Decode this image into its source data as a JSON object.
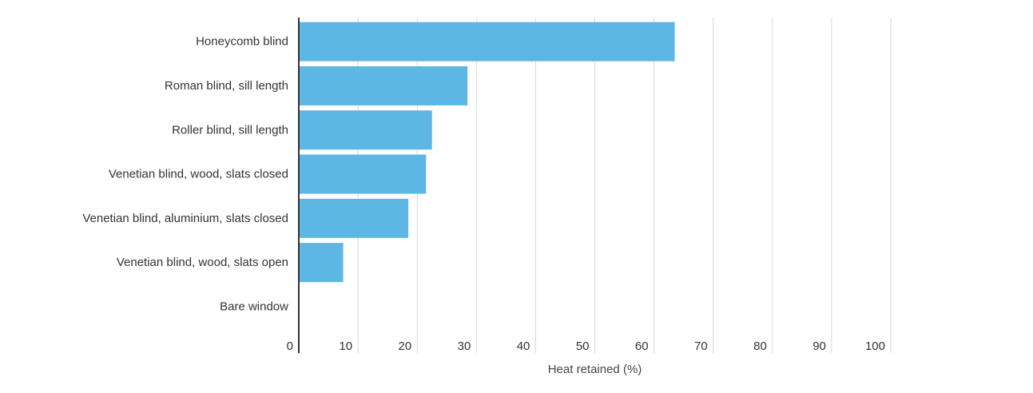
{
  "chart_data": {
    "type": "bar",
    "orientation": "horizontal",
    "categories": [
      "Honeycomb blind",
      "Roman blind, sill length",
      "Roller blind, sill length",
      "Venetian blind, wood, slats closed",
      "Venetian blind, aluminium, slats closed",
      "Venetian blind, wood, slats open",
      "Bare window"
    ],
    "values": [
      63.5,
      28.5,
      22.5,
      21.5,
      18.5,
      7.5,
      0
    ],
    "title": "",
    "xlabel": "Heat retained (%)",
    "ylabel": "",
    "xlim": [
      0,
      100
    ],
    "xticks": [
      "0",
      "10",
      "20",
      "30",
      "40",
      "50",
      "60",
      "70",
      "80",
      "90",
      "100"
    ],
    "grid": "vertical",
    "legend": "none",
    "colors": {
      "bar": "#5eb6e4",
      "grid": "#d9d9d9",
      "axis": "#333333"
    }
  }
}
